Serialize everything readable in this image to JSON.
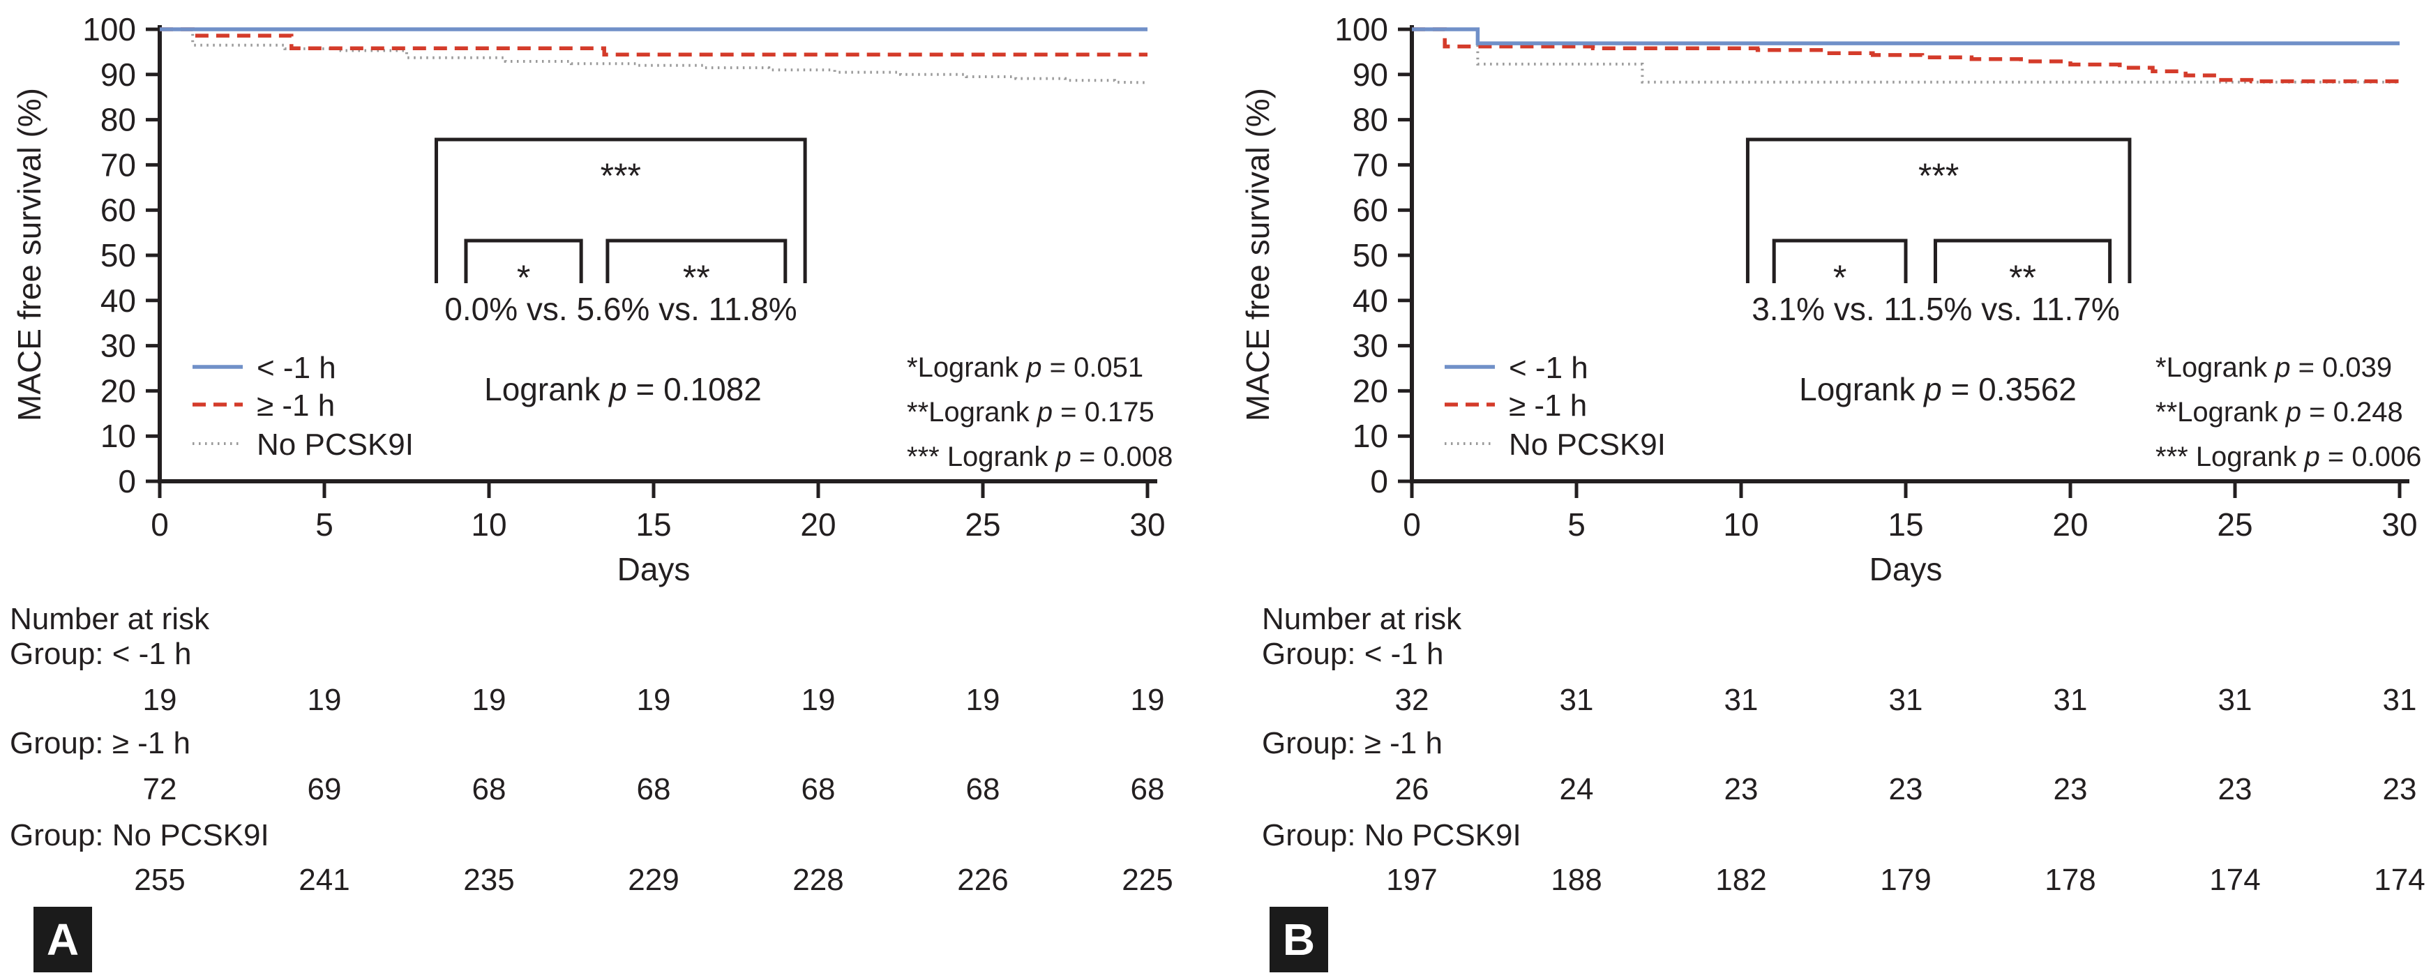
{
  "figure": {
    "y_axis_label": "MACE free survival (%)",
    "x_axis_label": "Days",
    "number_at_risk_heading": "Number at risk",
    "p_symbol": "p",
    "colors": {
      "blue": "#7090C8",
      "red": "#D43B2A",
      "gray": "#9A9A9A",
      "ink": "#231F20"
    },
    "panels": [
      {
        "letter": "A",
        "pct_comparison": "0.0% vs. 5.6% vs. 11.8%",
        "overall_logrank": {
          "prefix": "Logrank ",
          "value": " = 0.1082"
        },
        "pairwise": [
          {
            "prefix": "*Logrank ",
            "value": " = 0.051"
          },
          {
            "prefix": "**Logrank ",
            "value": " = 0.175"
          },
          {
            "prefix": "*** Logrank ",
            "value": " = 0.008"
          }
        ]
      },
      {
        "letter": "B",
        "pct_comparison": "3.1% vs. 11.5% vs. 11.7%",
        "overall_logrank": {
          "prefix": "Logrank ",
          "value": " = 0.3562"
        },
        "pairwise": [
          {
            "prefix": "*Logrank ",
            "value": " = 0.039"
          },
          {
            "prefix": "**Logrank ",
            "value": " = 0.248"
          },
          {
            "prefix": "*** Logrank ",
            "value": " = 0.006"
          }
        ]
      }
    ]
  },
  "chart_data": [
    {
      "type": "line",
      "subtype": "kaplan-meier-step",
      "panel": "A",
      "xlabel": "Days",
      "ylabel": "MACE free survival (%)",
      "xlim": [
        0,
        30
      ],
      "ylim": [
        0,
        100
      ],
      "xticks": [
        0,
        5,
        10,
        15,
        20,
        25,
        30
      ],
      "yticks": [
        0,
        10,
        20,
        30,
        40,
        50,
        60,
        70,
        80,
        90,
        100
      ],
      "grid": false,
      "legend_position": "left-middle-inside",
      "series": [
        {
          "name": "< -1 h",
          "color_key": "blue",
          "style": "solid",
          "points": [
            [
              0,
              100
            ],
            [
              30,
              100
            ]
          ]
        },
        {
          "name": "≥ -1 h",
          "color_key": "red",
          "style": "dashed",
          "points": [
            [
              0,
              100
            ],
            [
              1,
              100
            ],
            [
              1,
              98.6
            ],
            [
              4,
              98.6
            ],
            [
              4,
              95.8
            ],
            [
              13.5,
              95.8
            ],
            [
              13.5,
              94.4
            ],
            [
              30,
              94.4
            ]
          ]
        },
        {
          "name": "No PCSK9I",
          "color_key": "gray",
          "style": "dotted",
          "points": [
            [
              0,
              100
            ],
            [
              1,
              100
            ],
            [
              1,
              96.5
            ],
            [
              3.8,
              96.5
            ],
            [
              3.8,
              95.7
            ],
            [
              5.5,
              95.7
            ],
            [
              5.5,
              95.3
            ],
            [
              7.5,
              95.3
            ],
            [
              7.5,
              93.7
            ],
            [
              10.5,
              93.7
            ],
            [
              10.5,
              92.9
            ],
            [
              12.5,
              92.9
            ],
            [
              12.5,
              92.4
            ],
            [
              14.5,
              92.4
            ],
            [
              14.5,
              92.0
            ],
            [
              16.5,
              92.0
            ],
            [
              16.5,
              91.5
            ],
            [
              18.5,
              91.5
            ],
            [
              18.5,
              91.0
            ],
            [
              20.5,
              91.0
            ],
            [
              20.5,
              90.5
            ],
            [
              22.5,
              90.5
            ],
            [
              22.5,
              90.0
            ],
            [
              24.5,
              90.0
            ],
            [
              24.5,
              89.5
            ],
            [
              26,
              89.5
            ],
            [
              26,
              89.1
            ],
            [
              27.5,
              89.1
            ],
            [
              27.5,
              88.7
            ],
            [
              29,
              88.7
            ],
            [
              29,
              88.3
            ],
            [
              30,
              88.2
            ]
          ]
        }
      ],
      "annotations": {
        "comparison_text": "0.0% vs. 5.6% vs. 11.8%",
        "overall": "Logrank p = 0.1082",
        "pairwise": [
          "*Logrank p = 0.051",
          "**Logrank p = 0.175",
          "*** Logrank p = 0.008"
        ],
        "brackets": [
          {
            "stars": "***",
            "days": [
              8.4,
              19.6
            ],
            "tier": "outer"
          },
          {
            "stars": "*",
            "days": [
              9.3,
              12.8
            ],
            "tier": "inner"
          },
          {
            "stars": "**",
            "days": [
              13.6,
              19.0
            ],
            "tier": "inner"
          }
        ]
      },
      "number_at_risk": {
        "heading": "Number at risk",
        "rows": [
          {
            "group": "Group: < -1 h",
            "counts": [
              19,
              19,
              19,
              19,
              19,
              19,
              19
            ]
          },
          {
            "group": "Group: ≥ -1 h",
            "counts": [
              72,
              69,
              68,
              68,
              68,
              68,
              68
            ]
          },
          {
            "group": "Group: No PCSK9I",
            "counts": [
              255,
              241,
              235,
              229,
              228,
              226,
              225
            ]
          }
        ]
      }
    },
    {
      "type": "line",
      "subtype": "kaplan-meier-step",
      "panel": "B",
      "xlabel": "Days",
      "ylabel": "MACE free survival (%)",
      "xlim": [
        0,
        30
      ],
      "ylim": [
        0,
        100
      ],
      "xticks": [
        0,
        5,
        10,
        15,
        20,
        25,
        30
      ],
      "yticks": [
        0,
        10,
        20,
        30,
        40,
        50,
        60,
        70,
        80,
        90,
        100
      ],
      "grid": false,
      "legend_position": "left-middle-inside",
      "series": [
        {
          "name": "< -1 h",
          "color_key": "blue",
          "style": "solid",
          "points": [
            [
              0,
              100
            ],
            [
              2,
              100
            ],
            [
              2,
              96.9
            ],
            [
              30,
              96.9
            ]
          ]
        },
        {
          "name": "≥ -1 h",
          "color_key": "red",
          "style": "dashed",
          "points": [
            [
              0,
              100
            ],
            [
              1,
              100
            ],
            [
              1,
              96.2
            ],
            [
              5.5,
              96.2
            ],
            [
              5.5,
              95.8
            ],
            [
              10.5,
              95.8
            ],
            [
              10.5,
              95.4
            ],
            [
              12.5,
              95.4
            ],
            [
              12.5,
              94.7
            ],
            [
              14,
              94.7
            ],
            [
              14,
              94.3
            ],
            [
              15.5,
              94.3
            ],
            [
              15.5,
              93.8
            ],
            [
              17,
              93.8
            ],
            [
              17,
              93.4
            ],
            [
              18.5,
              93.4
            ],
            [
              18.5,
              92.9
            ],
            [
              20,
              92.9
            ],
            [
              20,
              92.2
            ],
            [
              21.5,
              92.2
            ],
            [
              21.5,
              91.5
            ],
            [
              22.5,
              91.5
            ],
            [
              22.5,
              90.7
            ],
            [
              23.5,
              90.7
            ],
            [
              23.5,
              89.8
            ],
            [
              24.5,
              89.8
            ],
            [
              24.5,
              88.8
            ],
            [
              25.5,
              88.8
            ],
            [
              25.5,
              88.5
            ],
            [
              30,
              88.5
            ]
          ]
        },
        {
          "name": "No PCSK9I",
          "color_key": "gray",
          "style": "dotted",
          "points": [
            [
              0,
              100
            ],
            [
              2,
              100
            ],
            [
              2,
              92.3
            ],
            [
              7,
              92.3
            ],
            [
              7,
              88.3
            ],
            [
              30,
              88.3
            ]
          ]
        }
      ],
      "annotations": {
        "comparison_text": "3.1% vs. 11.5% vs. 11.7%",
        "overall": "Logrank p = 0.3562",
        "pairwise": [
          "*Logrank p = 0.039",
          "**Logrank p = 0.248",
          "*** Logrank p = 0.006"
        ],
        "brackets": [
          {
            "stars": "***",
            "days": [
              10.2,
              21.8
            ],
            "tier": "outer"
          },
          {
            "stars": "*",
            "days": [
              11.0,
              15.0
            ],
            "tier": "inner"
          },
          {
            "stars": "**",
            "days": [
              15.9,
              21.2
            ],
            "tier": "inner"
          }
        ]
      },
      "number_at_risk": {
        "heading": "Number at risk",
        "rows": [
          {
            "group": "Group: < -1 h",
            "counts": [
              32,
              31,
              31,
              31,
              31,
              31,
              31
            ]
          },
          {
            "group": "Group: ≥ -1 h",
            "counts": [
              26,
              24,
              23,
              23,
              23,
              23,
              23
            ]
          },
          {
            "group": "Group: No PCSK9I",
            "counts": [
              197,
              188,
              182,
              179,
              178,
              174,
              174
            ]
          }
        ]
      }
    }
  ]
}
